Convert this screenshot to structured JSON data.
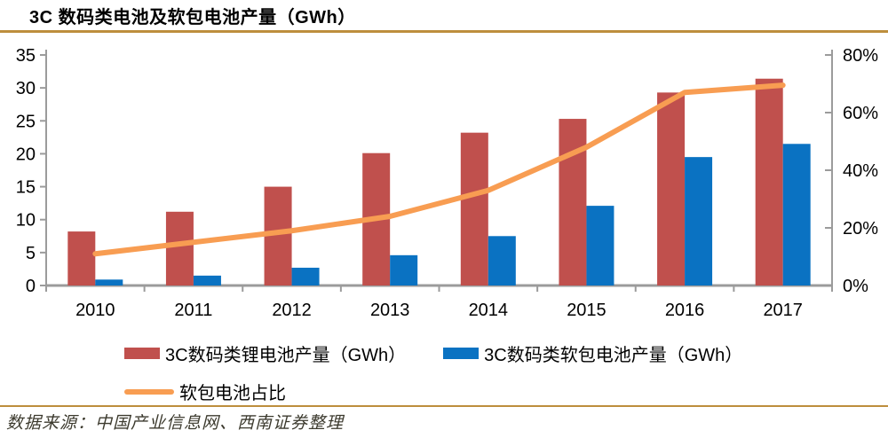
{
  "header": {
    "title": "3C 数码类电池及软包电池产量（GWh）"
  },
  "footer": {
    "source": "数据来源：中国产业信息网、西南证券整理"
  },
  "colors": {
    "accent_gold": "#BD8E3D",
    "axis_gray": "#9B9B9B",
    "bar_red": "#C0504D",
    "bar_blue": "#0A72C2",
    "line_orange": "#F89D52"
  },
  "chart_data": {
    "type": "bar",
    "subtype": "bar+line combo, dual y-axis",
    "title": "3C 数码类电池及软包电池产量（GWh）",
    "xlabel": "",
    "ylabel_left": "",
    "ylabel_right": "",
    "grid": false,
    "legend_position": "bottom",
    "categories": [
      "2010",
      "2011",
      "2012",
      "2013",
      "2014",
      "2015",
      "2016",
      "2017"
    ],
    "series": [
      {
        "key": "lithium",
        "name": "3C数码类锂电池产量（GWh）",
        "kind": "bar",
        "axis": "left",
        "color": "#C0504D",
        "values": [
          8.2,
          11.2,
          15.0,
          20.1,
          23.2,
          25.3,
          29.3,
          31.4
        ]
      },
      {
        "key": "pouch",
        "name": "3C数码类软包电池产量（GWh）",
        "kind": "bar",
        "axis": "left",
        "color": "#0A72C2",
        "values": [
          0.9,
          1.5,
          2.7,
          4.6,
          7.5,
          12.1,
          19.5,
          21.5
        ]
      },
      {
        "key": "pouch-ratio",
        "name": "软包电池占比",
        "kind": "line",
        "axis": "right",
        "color": "#F89D52",
        "values": [
          11,
          15,
          19,
          24,
          33,
          48,
          67,
          69.5
        ]
      }
    ],
    "left_axis": {
      "min": 0,
      "max": 35,
      "step": 5,
      "ticks": [
        "0",
        "5",
        "10",
        "15",
        "20",
        "25",
        "30",
        "35"
      ]
    },
    "right_axis": {
      "min": 0,
      "max": 80,
      "step": 20,
      "ticks": [
        "0%",
        "20%",
        "40%",
        "60%",
        "80%"
      ]
    }
  },
  "legend": {
    "items": [
      {
        "label": "3C数码类锂电池产量（GWh）",
        "color": "#C0504D",
        "type": "box"
      },
      {
        "label": "3C数码类软包电池产量（GWh）",
        "color": "#0A72C2",
        "type": "box"
      },
      {
        "label": "软包电池占比",
        "color": "#F89D52",
        "type": "line"
      }
    ]
  }
}
